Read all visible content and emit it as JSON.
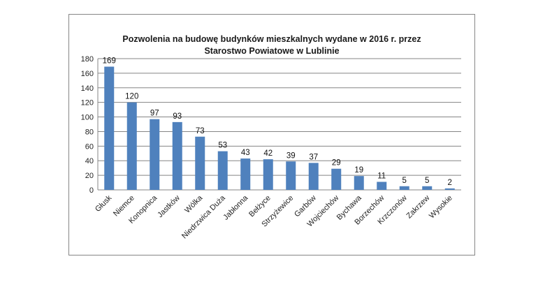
{
  "chart_data": {
    "type": "bar",
    "title_line1": "Pozwolenia na budowę budynków mieszkalnych wydane w 2016 r. przez",
    "title_line2": "Starostwo Powiatowe w Lublinie",
    "categories": [
      "Głusk",
      "Niemce",
      "Konopnica",
      "Jastków",
      "Wólka",
      "Niedrzwica Duża",
      "Jabłonna",
      "Bełżyce",
      "Strzyżewice",
      "Garbów",
      "Wojciechów",
      "Bychawa",
      "Borzechów",
      "Krzczonów",
      "Zakrzew",
      "Wysokie"
    ],
    "values": [
      169,
      120,
      97,
      93,
      73,
      53,
      43,
      42,
      39,
      37,
      29,
      19,
      11,
      5,
      5,
      2
    ],
    "ylim": [
      0,
      180
    ],
    "yticks": [
      0,
      20,
      40,
      60,
      80,
      100,
      120,
      140,
      160,
      180
    ],
    "grid": true,
    "legend": "none",
    "bar_color": "#4f81bd"
  }
}
